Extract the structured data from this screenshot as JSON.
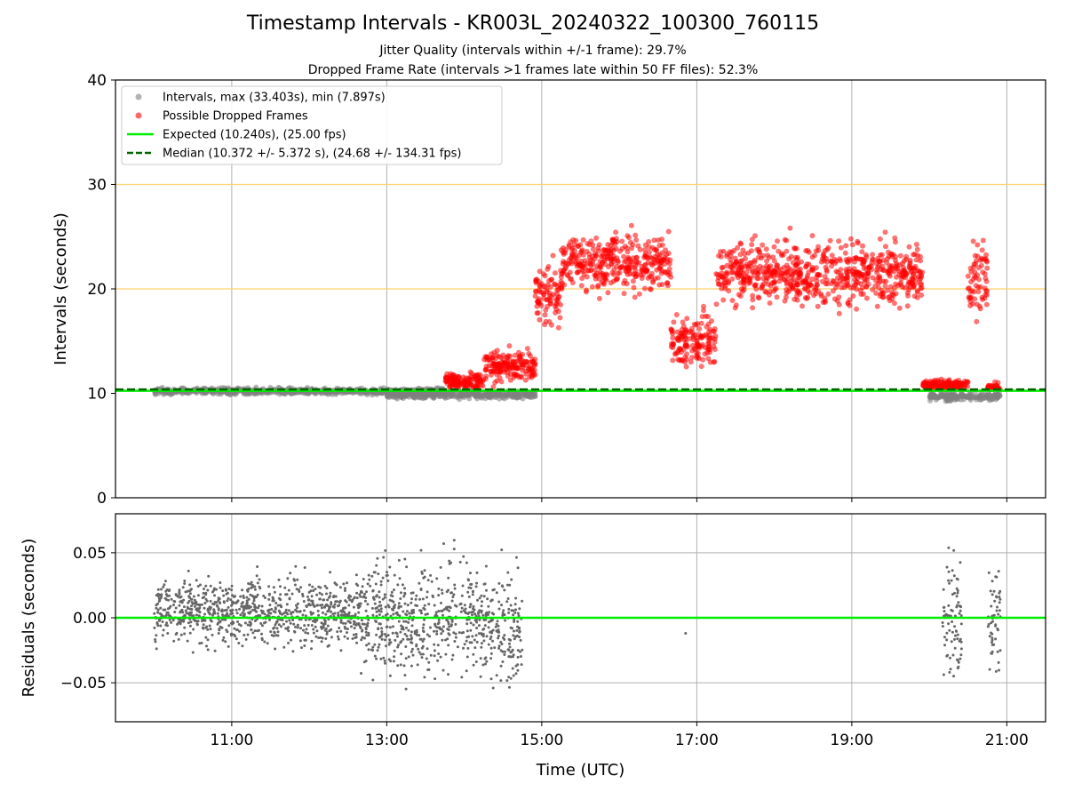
{
  "figure": {
    "title": "Timestamp Intervals - KR003L_20240322_100300_760115",
    "subtitle_1": "Jitter Quality (intervals within +/-1 frame): 29.7%",
    "subtitle_2": "Dropped Frame Rate (intervals >1 frames late within 50 FF files): 52.3%"
  },
  "colors": {
    "intervals": "#808080",
    "dropped": "#ff0000",
    "expected": "#00ee00",
    "median": "#006400",
    "hline": "#ffd270",
    "grid": "#b0b0b0",
    "residuals": "#666666"
  },
  "chart_data": [
    {
      "type": "scatter",
      "panel": "top",
      "xlabel": "",
      "ylabel": "Intervals (seconds)",
      "xlim": [
        "09:30",
        "21:30"
      ],
      "ylim": [
        0,
        40
      ],
      "yticks": [
        0,
        10,
        20,
        30,
        40
      ],
      "xticks": [
        "11:00",
        "13:00",
        "15:00",
        "17:00",
        "19:00",
        "21:00"
      ],
      "grid": "x only",
      "legend_position": "top-left",
      "legend": [
        "Intervals, max (33.403s), min (7.897s)",
        "Possible Dropped Frames",
        "Expected (10.240s), (25.00 fps)",
        "Median (10.372 +/- 5.372 s), (24.68 +/- 134.31 fps)"
      ],
      "reference_lines": {
        "expected": 10.24,
        "median": 10.372,
        "horizontal": [
          20,
          30
        ]
      },
      "series_summary": [
        {
          "name": "Intervals, max (33.403s), min (7.897s)",
          "time_range": [
            "10:00",
            "20:55"
          ],
          "typical_range": [
            9,
            11
          ],
          "max": 33.403,
          "min": 7.897
        },
        {
          "name": "Possible Dropped Frames",
          "time_range": [
            "13:45",
            "20:55"
          ],
          "max": 33.403
        }
      ],
      "segments": [
        {
          "series": "Intervals",
          "t0": "10:00",
          "t1": "13:45",
          "center": 10.2,
          "spread": 0.5
        },
        {
          "series": "Intervals",
          "t0": "13:00",
          "t1": "14:55",
          "center": 9.9,
          "spread": 0.7
        },
        {
          "series": "Intervals",
          "t0": "20:00",
          "t1": "20:55",
          "center": 9.7,
          "spread": 0.6
        },
        {
          "series": "Possible Dropped Frames",
          "t0": "13:45",
          "t1": "14:15",
          "center": 11.2,
          "spread": 1.2
        },
        {
          "series": "Possible Dropped Frames",
          "t0": "14:15",
          "t1": "14:55",
          "center": 12.5,
          "spread": 2.5
        },
        {
          "series": "Possible Dropped Frames",
          "t0": "14:55",
          "t1": "15:15",
          "center": 19.5,
          "spread": 4.5
        },
        {
          "series": "Possible Dropped Frames",
          "t0": "15:15",
          "t1": "16:40",
          "center": 22.5,
          "spread": 4.5
        },
        {
          "series": "Possible Dropped Frames",
          "t0": "16:40",
          "t1": "17:15",
          "center": 15,
          "spread": 4
        },
        {
          "series": "Possible Dropped Frames",
          "t0": "17:15",
          "t1": "19:55",
          "center": 21.5,
          "spread": 5
        },
        {
          "series": "Possible Dropped Frames",
          "t0": "19:55",
          "t1": "20:30",
          "center": 10.8,
          "spread": 0.8
        },
        {
          "series": "Possible Dropped Frames",
          "t0": "20:30",
          "t1": "20:45",
          "center": 21,
          "spread": 6
        },
        {
          "series": "Possible Dropped Frames",
          "t0": "20:45",
          "t1": "20:55",
          "center": 10.5,
          "spread": 0.5
        }
      ]
    },
    {
      "type": "scatter",
      "panel": "bottom",
      "xlabel": "Time (UTC)",
      "ylabel": "Residuals (seconds)",
      "xlim": [
        "09:30",
        "21:30"
      ],
      "ylim": [
        -0.08,
        0.08
      ],
      "yticks": [
        "−0.05",
        "0.00",
        "0.05"
      ],
      "ytick_values": [
        -0.05,
        0.0,
        0.05
      ],
      "xticks": [
        "11:00",
        "13:00",
        "15:00",
        "17:00",
        "19:00",
        "21:00"
      ],
      "grid": "both",
      "zero_line": 0,
      "segments": [
        {
          "t0": "10:00",
          "t1": "12:40",
          "center": 0.005,
          "spread": 0.035
        },
        {
          "t0": "12:40",
          "t1": "14:20",
          "center": 0.0,
          "spread": 0.06
        },
        {
          "t0": "14:20",
          "t1": "14:45",
          "center": -0.01,
          "spread": 0.06
        },
        {
          "t0": "16:50",
          "t1": "16:52",
          "center": -0.012,
          "spread": 0.0
        },
        {
          "t0": "20:10",
          "t1": "20:25",
          "center": 0.0,
          "spread": 0.07
        },
        {
          "t0": "20:45",
          "t1": "20:55",
          "center": 0.0,
          "spread": 0.05
        }
      ]
    }
  ]
}
